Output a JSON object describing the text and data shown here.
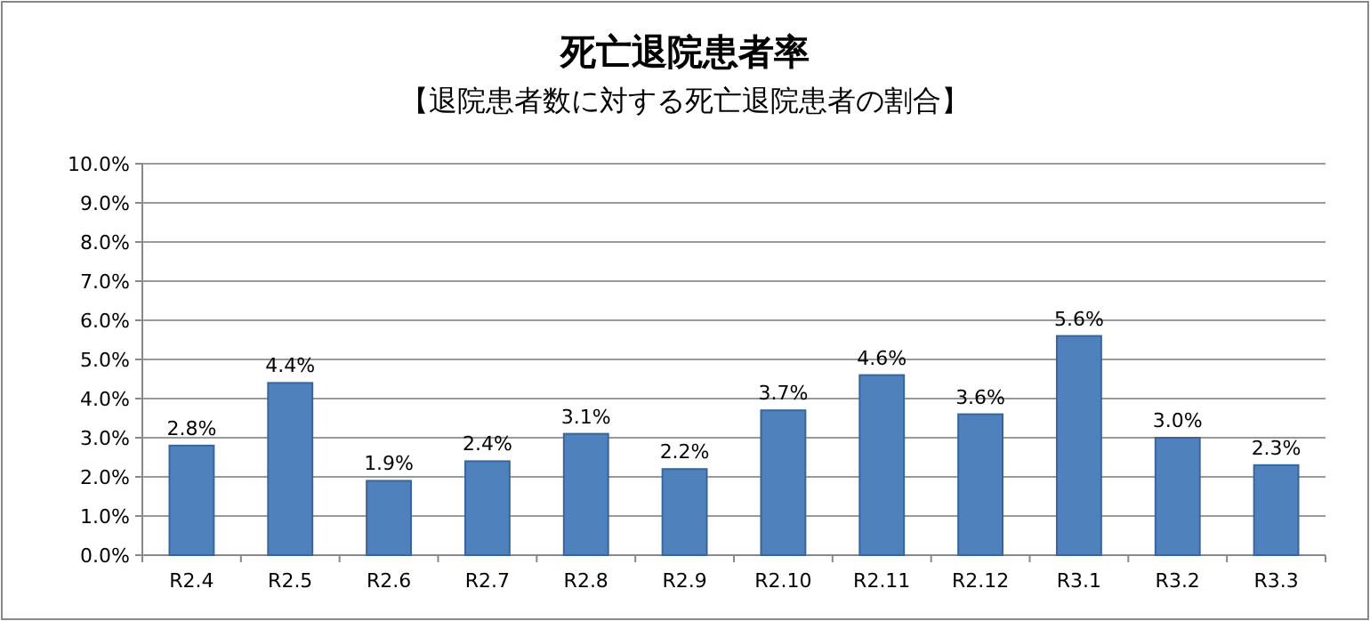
{
  "chart_data": {
    "type": "bar",
    "title": "死亡退院患者率",
    "subtitle": "【退院患者数に対する死亡退院患者の割合】",
    "categories": [
      "R2.4",
      "R2.5",
      "R2.6",
      "R2.7",
      "R2.8",
      "R2.9",
      "R2.10",
      "R2.11",
      "R2.12",
      "R3.1",
      "R3.2",
      "R3.3"
    ],
    "values": [
      2.8,
      4.4,
      1.9,
      2.4,
      3.1,
      2.2,
      3.7,
      4.6,
      3.6,
      5.6,
      3.0,
      2.3
    ],
    "value_labels": [
      "2.8%",
      "4.4%",
      "1.9%",
      "2.4%",
      "3.1%",
      "2.2%",
      "3.7%",
      "4.6%",
      "3.6%",
      "5.6%",
      "3.0%",
      "2.3%"
    ],
    "color": "#4f81bd",
    "ylim": [
      0,
      10
    ],
    "yticks": [
      {
        "value": 0,
        "label": "0.0%"
      },
      {
        "value": 1,
        "label": "1.0%"
      },
      {
        "value": 2,
        "label": "2.0%"
      },
      {
        "value": 3,
        "label": "3.0%"
      },
      {
        "value": 4,
        "label": "4.0%"
      },
      {
        "value": 5,
        "label": "5.0%"
      },
      {
        "value": 6,
        "label": "6.0%"
      },
      {
        "value": 7,
        "label": "7.0%"
      },
      {
        "value": 8,
        "label": "8.0%"
      },
      {
        "value": 9,
        "label": "9.0%"
      },
      {
        "value": 10,
        "label": "10.0%"
      }
    ],
    "grid": "y"
  }
}
